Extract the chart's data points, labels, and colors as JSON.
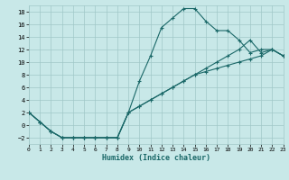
{
  "xlabel": "Humidex (Indice chaleur)",
  "bg_color": "#c8e8e8",
  "grid_color": "#a0c8c8",
  "line_color": "#1a6868",
  "xlim": [
    0,
    23
  ],
  "ylim": [
    -3,
    19
  ],
  "xticks": [
    0,
    1,
    2,
    3,
    4,
    5,
    6,
    7,
    8,
    9,
    10,
    11,
    12,
    13,
    14,
    15,
    16,
    17,
    18,
    19,
    20,
    21,
    22,
    23
  ],
  "yticks": [
    -2,
    0,
    2,
    4,
    6,
    8,
    10,
    12,
    14,
    16,
    18
  ],
  "curve1_x": [
    0,
    1,
    2,
    3,
    4,
    5,
    6,
    7,
    8,
    9,
    10,
    11,
    12,
    13,
    14,
    15,
    16,
    17,
    18,
    19,
    20,
    21,
    22,
    23
  ],
  "curve1_y": [
    2,
    0.5,
    -1,
    -2,
    -2,
    -2,
    -2,
    -2,
    -2,
    2,
    7,
    11,
    15.5,
    17,
    18.5,
    18.5,
    16.5,
    15,
    15,
    13.5,
    11.5,
    12,
    12,
    11
  ],
  "curve2_x": [
    0,
    1,
    2,
    3,
    4,
    5,
    6,
    7,
    8,
    9,
    10,
    11,
    12,
    13,
    14,
    15,
    16,
    17,
    18,
    19,
    20,
    21,
    22,
    23
  ],
  "curve2_y": [
    2,
    0.5,
    -1,
    -2,
    -2,
    -2,
    -2,
    -2,
    -2,
    2,
    3,
    4,
    5,
    6,
    7,
    8,
    9,
    10,
    11,
    12,
    13.5,
    11.5,
    12,
    11
  ],
  "curve3_x": [
    0,
    1,
    2,
    3,
    4,
    5,
    6,
    7,
    8,
    9,
    10,
    11,
    12,
    13,
    14,
    15,
    16,
    17,
    18,
    19,
    20,
    21,
    22,
    23
  ],
  "curve3_y": [
    2,
    0.5,
    -1,
    -2,
    -2,
    -2,
    -2,
    -2,
    -2,
    2,
    3,
    4,
    5,
    6,
    7,
    8,
    8.5,
    9,
    9.5,
    10,
    10.5,
    11,
    12,
    11
  ]
}
